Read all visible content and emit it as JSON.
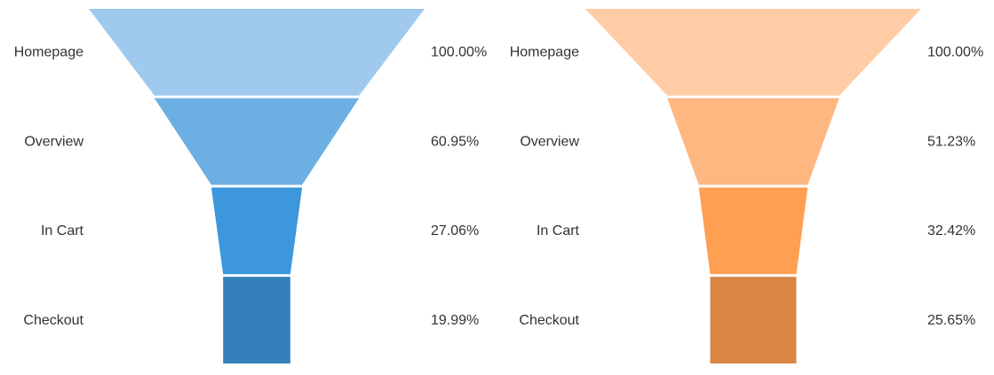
{
  "chart_data": [
    {
      "type": "funnel",
      "categories": [
        "Homepage",
        "Overview",
        "In Cart",
        "Checkout"
      ],
      "values": [
        100.0,
        60.95,
        27.06,
        19.99
      ],
      "value_labels": [
        "100.00%",
        "60.95%",
        "27.06%",
        "19.99%"
      ],
      "colors": [
        "#9fcaee",
        "#6cb0e3",
        "#3c97dd",
        "#3480bb"
      ]
    },
    {
      "type": "funnel",
      "categories": [
        "Homepage",
        "Overview",
        "In Cart",
        "Checkout"
      ],
      "values": [
        100.0,
        51.23,
        32.42,
        25.65
      ],
      "value_labels": [
        "100.00%",
        "51.23%",
        "32.42%",
        "25.65%"
      ],
      "colors": [
        "#ffcca5",
        "#ffb782",
        "#ff9f52",
        "#d98544"
      ]
    }
  ]
}
